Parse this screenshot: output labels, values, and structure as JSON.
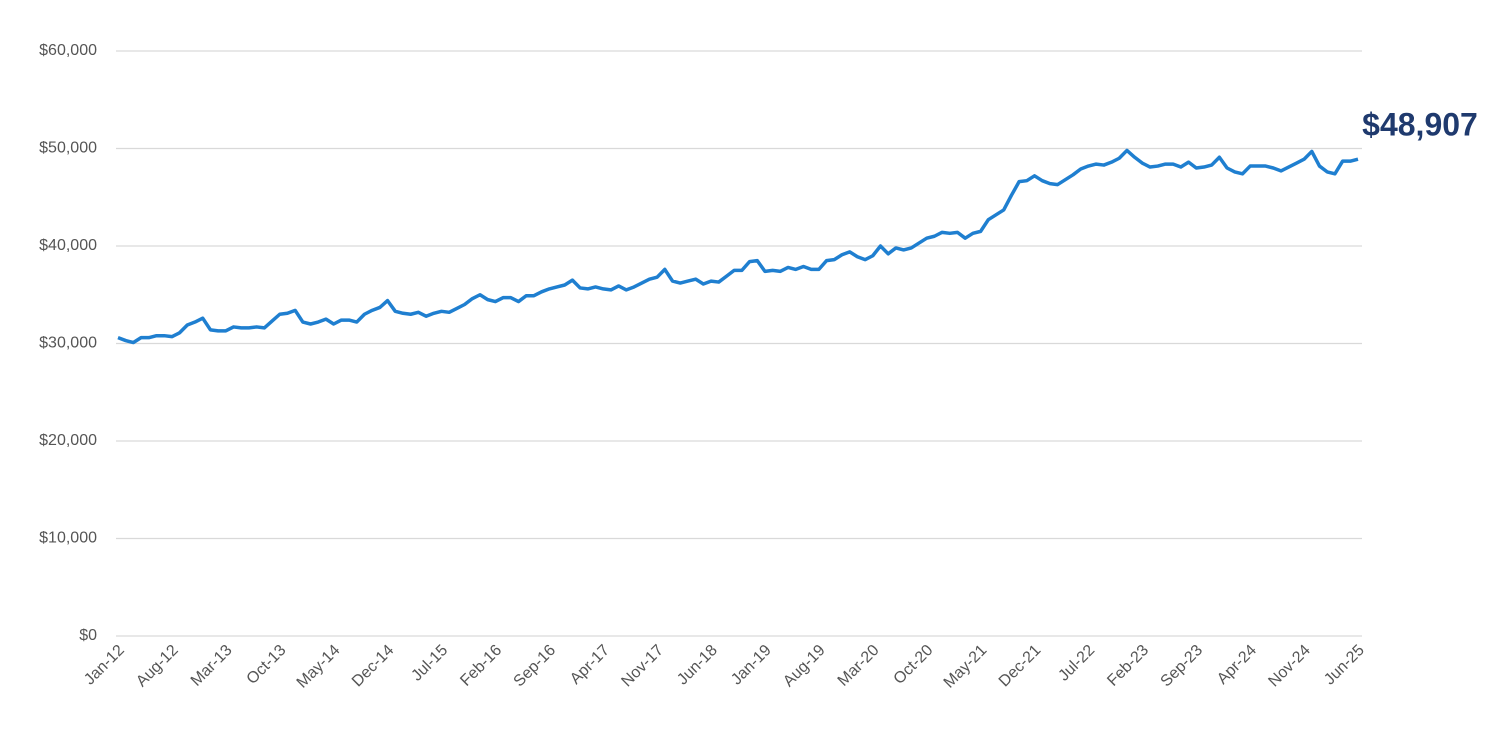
{
  "chart_data": {
    "type": "line",
    "categories": [
      "Jan-12",
      null,
      null,
      null,
      null,
      null,
      null,
      "Aug-12",
      null,
      null,
      null,
      null,
      null,
      null,
      "Mar-13",
      null,
      null,
      null,
      null,
      null,
      null,
      "Oct-13",
      null,
      null,
      null,
      null,
      null,
      null,
      "May-14",
      null,
      null,
      null,
      null,
      null,
      null,
      "Dec-14",
      null,
      null,
      null,
      null,
      null,
      null,
      "Jul-15",
      null,
      null,
      null,
      null,
      null,
      null,
      "Feb-16",
      null,
      null,
      null,
      null,
      null,
      null,
      "Sep-16",
      null,
      null,
      null,
      null,
      null,
      null,
      "Apr-17",
      null,
      null,
      null,
      null,
      null,
      null,
      "Nov-17",
      null,
      null,
      null,
      null,
      null,
      null,
      "Jun-18",
      null,
      null,
      null,
      null,
      null,
      null,
      "Jan-19",
      null,
      null,
      null,
      null,
      null,
      null,
      "Aug-19",
      null,
      null,
      null,
      null,
      null,
      null,
      "Mar-20",
      null,
      null,
      null,
      null,
      null,
      null,
      "Oct-20",
      null,
      null,
      null,
      null,
      null,
      null,
      "May-21",
      null,
      null,
      null,
      null,
      null,
      null,
      "Dec-21",
      null,
      null,
      null,
      null,
      null,
      null,
      "Jul-22",
      null,
      null,
      null,
      null,
      null,
      null,
      "Feb-23",
      null,
      null,
      null,
      null,
      null,
      null,
      "Sep-23",
      null,
      null,
      null,
      null,
      null,
      null,
      "Apr-24",
      null,
      null,
      null,
      null,
      null,
      null,
      "Nov-24",
      null,
      null,
      null,
      null,
      null,
      null,
      "Jun-25"
    ],
    "series": [
      {
        "color": "#1f7fd0",
        "values": [
          30600,
          30300,
          30100,
          30600,
          30600,
          30800,
          30800,
          30700,
          31100,
          31900,
          32200,
          32600,
          31400,
          31300,
          31300,
          31700,
          31600,
          31600,
          31700,
          31600,
          32300,
          33000,
          33100,
          33400,
          32200,
          32000,
          32200,
          32500,
          32000,
          32400,
          32400,
          32200,
          33000,
          33400,
          33700,
          34400,
          33300,
          33100,
          33000,
          33200,
          32800,
          33100,
          33300,
          33200,
          33600,
          34000,
          34600,
          35000,
          34500,
          34300,
          34700,
          34700,
          34300,
          34900,
          34900,
          35300,
          35600,
          35800,
          36000,
          36500,
          35700,
          35600,
          35800,
          35600,
          35500,
          35900,
          35500,
          35800,
          36200,
          36600,
          36800,
          37600,
          36400,
          36200,
          36400,
          36600,
          36100,
          36400,
          36300,
          36900,
          37500,
          37500,
          38400,
          38500,
          37400,
          37500,
          37400,
          37800,
          37600,
          37900,
          37600,
          37600,
          38500,
          38600,
          39100,
          39400,
          38900,
          38600,
          39000,
          40000,
          39200,
          39800,
          39600,
          39800,
          40300,
          40800,
          41000,
          41400,
          41300,
          41400,
          40800,
          41300,
          41500,
          42700,
          43200,
          43700,
          45200,
          46600,
          46700,
          47200,
          46700,
          46400,
          46300,
          46800,
          47300,
          47900,
          48200,
          48400,
          48300,
          48600,
          49000,
          49800,
          49100,
          48500,
          48100,
          48200,
          48400,
          48400,
          48100,
          48600,
          48000,
          48100,
          48300,
          49100,
          48000,
          47600,
          47400,
          48200,
          48200,
          48200,
          48000,
          47700,
          48100,
          48500,
          48900,
          49700,
          48200,
          47600,
          47400,
          48700,
          48700,
          48907
        ],
        "value_labels": [
          null,
          null,
          null,
          null,
          null,
          null,
          null,
          null,
          null,
          null,
          null,
          null,
          null,
          null,
          null,
          null,
          null,
          null,
          null,
          null,
          null,
          null,
          null,
          null,
          null,
          null,
          null,
          null,
          null,
          null,
          null,
          null,
          null,
          null,
          null,
          null,
          null,
          null,
          null,
          null,
          null,
          null,
          null,
          null,
          null,
          null,
          null,
          null,
          null,
          null,
          null,
          null,
          null,
          null,
          null,
          null,
          null,
          null,
          null,
          null,
          null,
          null,
          null,
          null,
          null,
          null,
          null,
          null,
          null,
          null,
          null,
          null,
          null,
          null,
          null,
          null,
          null,
          null,
          null,
          null,
          null,
          null,
          null,
          null,
          null,
          null,
          null,
          null,
          null,
          null,
          null,
          null,
          null,
          null,
          null,
          null,
          null,
          null,
          null,
          null,
          null,
          null,
          null,
          null,
          null,
          null,
          null,
          null,
          null,
          null,
          null,
          null,
          null,
          null,
          null,
          null,
          null,
          null,
          null,
          null,
          null,
          null,
          null,
          null,
          null,
          null,
          null,
          null,
          null,
          null,
          null,
          null,
          null,
          null,
          null,
          null,
          null,
          null,
          null,
          null,
          null,
          null,
          null,
          null,
          null,
          null,
          null,
          null,
          null,
          null,
          null,
          null,
          null,
          null,
          null,
          null,
          null,
          null,
          null,
          null,
          null,
          "$48,907"
        ],
        "label_color": "#1f3a6e"
      }
    ],
    "ylim": [
      0,
      60000
    ],
    "yticks": [
      {
        "value": 0,
        "label": "$0"
      },
      {
        "value": 10000,
        "label": "$10,000"
      },
      {
        "value": 20000,
        "label": "$20,000"
      },
      {
        "value": 30000,
        "label": "$30,000"
      },
      {
        "value": 40000,
        "label": "$40,000"
      },
      {
        "value": 50000,
        "label": "$50,000"
      },
      {
        "value": 60000,
        "label": "$60,000"
      }
    ],
    "grid": true
  }
}
